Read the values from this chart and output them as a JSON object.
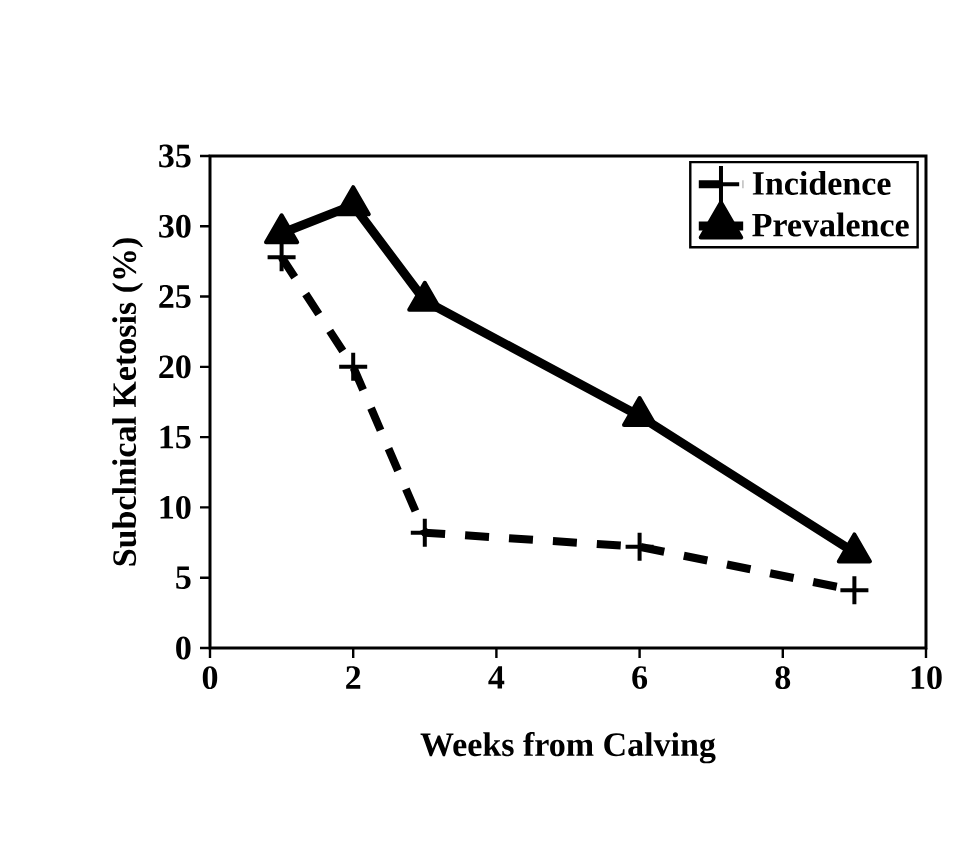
{
  "chart_data": {
    "type": "line",
    "xlabel": "Weeks from Calving",
    "ylabel": "Subclnical Ketosis (%)",
    "xlim": [
      0,
      10
    ],
    "ylim": [
      0,
      35
    ],
    "xticks": [
      0,
      2,
      4,
      6,
      8,
      10
    ],
    "yticks": [
      0,
      5,
      10,
      15,
      20,
      25,
      30,
      35
    ],
    "legend": "top right",
    "grid": false,
    "series": [
      {
        "name": "Incidence",
        "color": "#000000",
        "x": [
          1,
          2,
          3,
          6,
          9
        ],
        "values": [
          27.8,
          20,
          8.2,
          7.2,
          4.1
        ],
        "line_style": "dashed",
        "marker": "cross"
      },
      {
        "name": "Prevalence",
        "color": "#000000",
        "x": [
          1,
          2,
          3,
          6,
          9
        ],
        "values": [
          29.5,
          31.5,
          24.7,
          16.5,
          6.8
        ],
        "line_style": "solid",
        "marker": "triangle"
      }
    ]
  }
}
